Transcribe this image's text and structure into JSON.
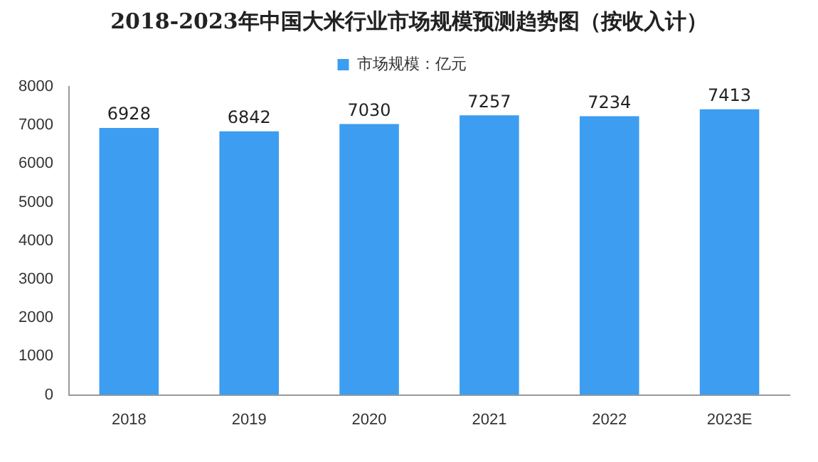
{
  "chart_data": {
    "type": "bar",
    "title": "2018-2023年中国大米行业市场规模预测趋势图（按收入计）",
    "categories": [
      "2018",
      "2019",
      "2020",
      "2021",
      "2022",
      "2023E"
    ],
    "series": [
      {
        "name": "市场规模：亿元",
        "color": "#3d9df0",
        "values": [
          6928,
          6842,
          7030,
          7257,
          7234,
          7413
        ]
      }
    ],
    "ylim": [
      0,
      8000
    ],
    "yticks": [
      0,
      1000,
      2000,
      3000,
      4000,
      5000,
      6000,
      7000,
      8000
    ],
    "grid": false,
    "legend": "top",
    "data_labels": true
  }
}
